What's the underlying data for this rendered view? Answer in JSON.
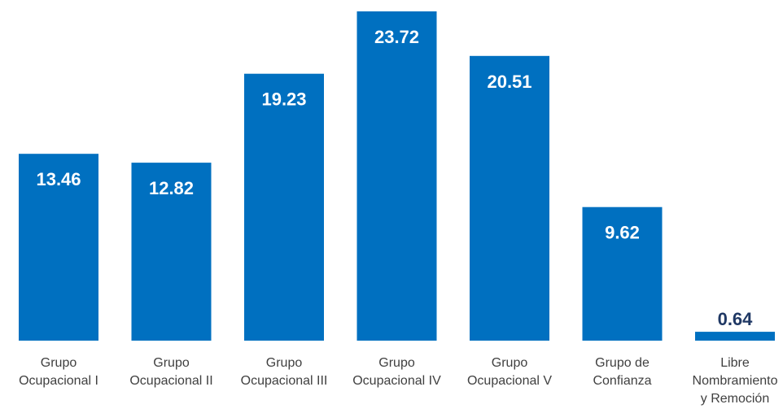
{
  "chart_data": {
    "type": "bar",
    "title": "",
    "xlabel": "",
    "ylabel": "",
    "categories": [
      [
        "Grupo",
        "Ocupacional I"
      ],
      [
        "Grupo",
        "Ocupacional II"
      ],
      [
        "Grupo",
        "Ocupacional III"
      ],
      [
        "Grupo",
        "Ocupacional IV"
      ],
      [
        "Grupo",
        "Ocupacional V"
      ],
      [
        "Grupo de",
        "Confianza"
      ],
      [
        "Libre",
        "Nombramiento",
        "y Remoción"
      ]
    ],
    "values": [
      13.46,
      12.82,
      19.23,
      23.72,
      20.51,
      9.62,
      0.64
    ],
    "value_labels": [
      "13.46",
      "12.82",
      "19.23",
      "23.72",
      "20.51",
      "9.62",
      "0.64"
    ],
    "ylim": [
      0,
      23.72
    ],
    "grid": false,
    "legend": "none",
    "colors": {
      "bar": "#0070c0",
      "label_inside": "#ffffff",
      "label_outside": "#1f3864",
      "category_text": "#404040"
    }
  }
}
